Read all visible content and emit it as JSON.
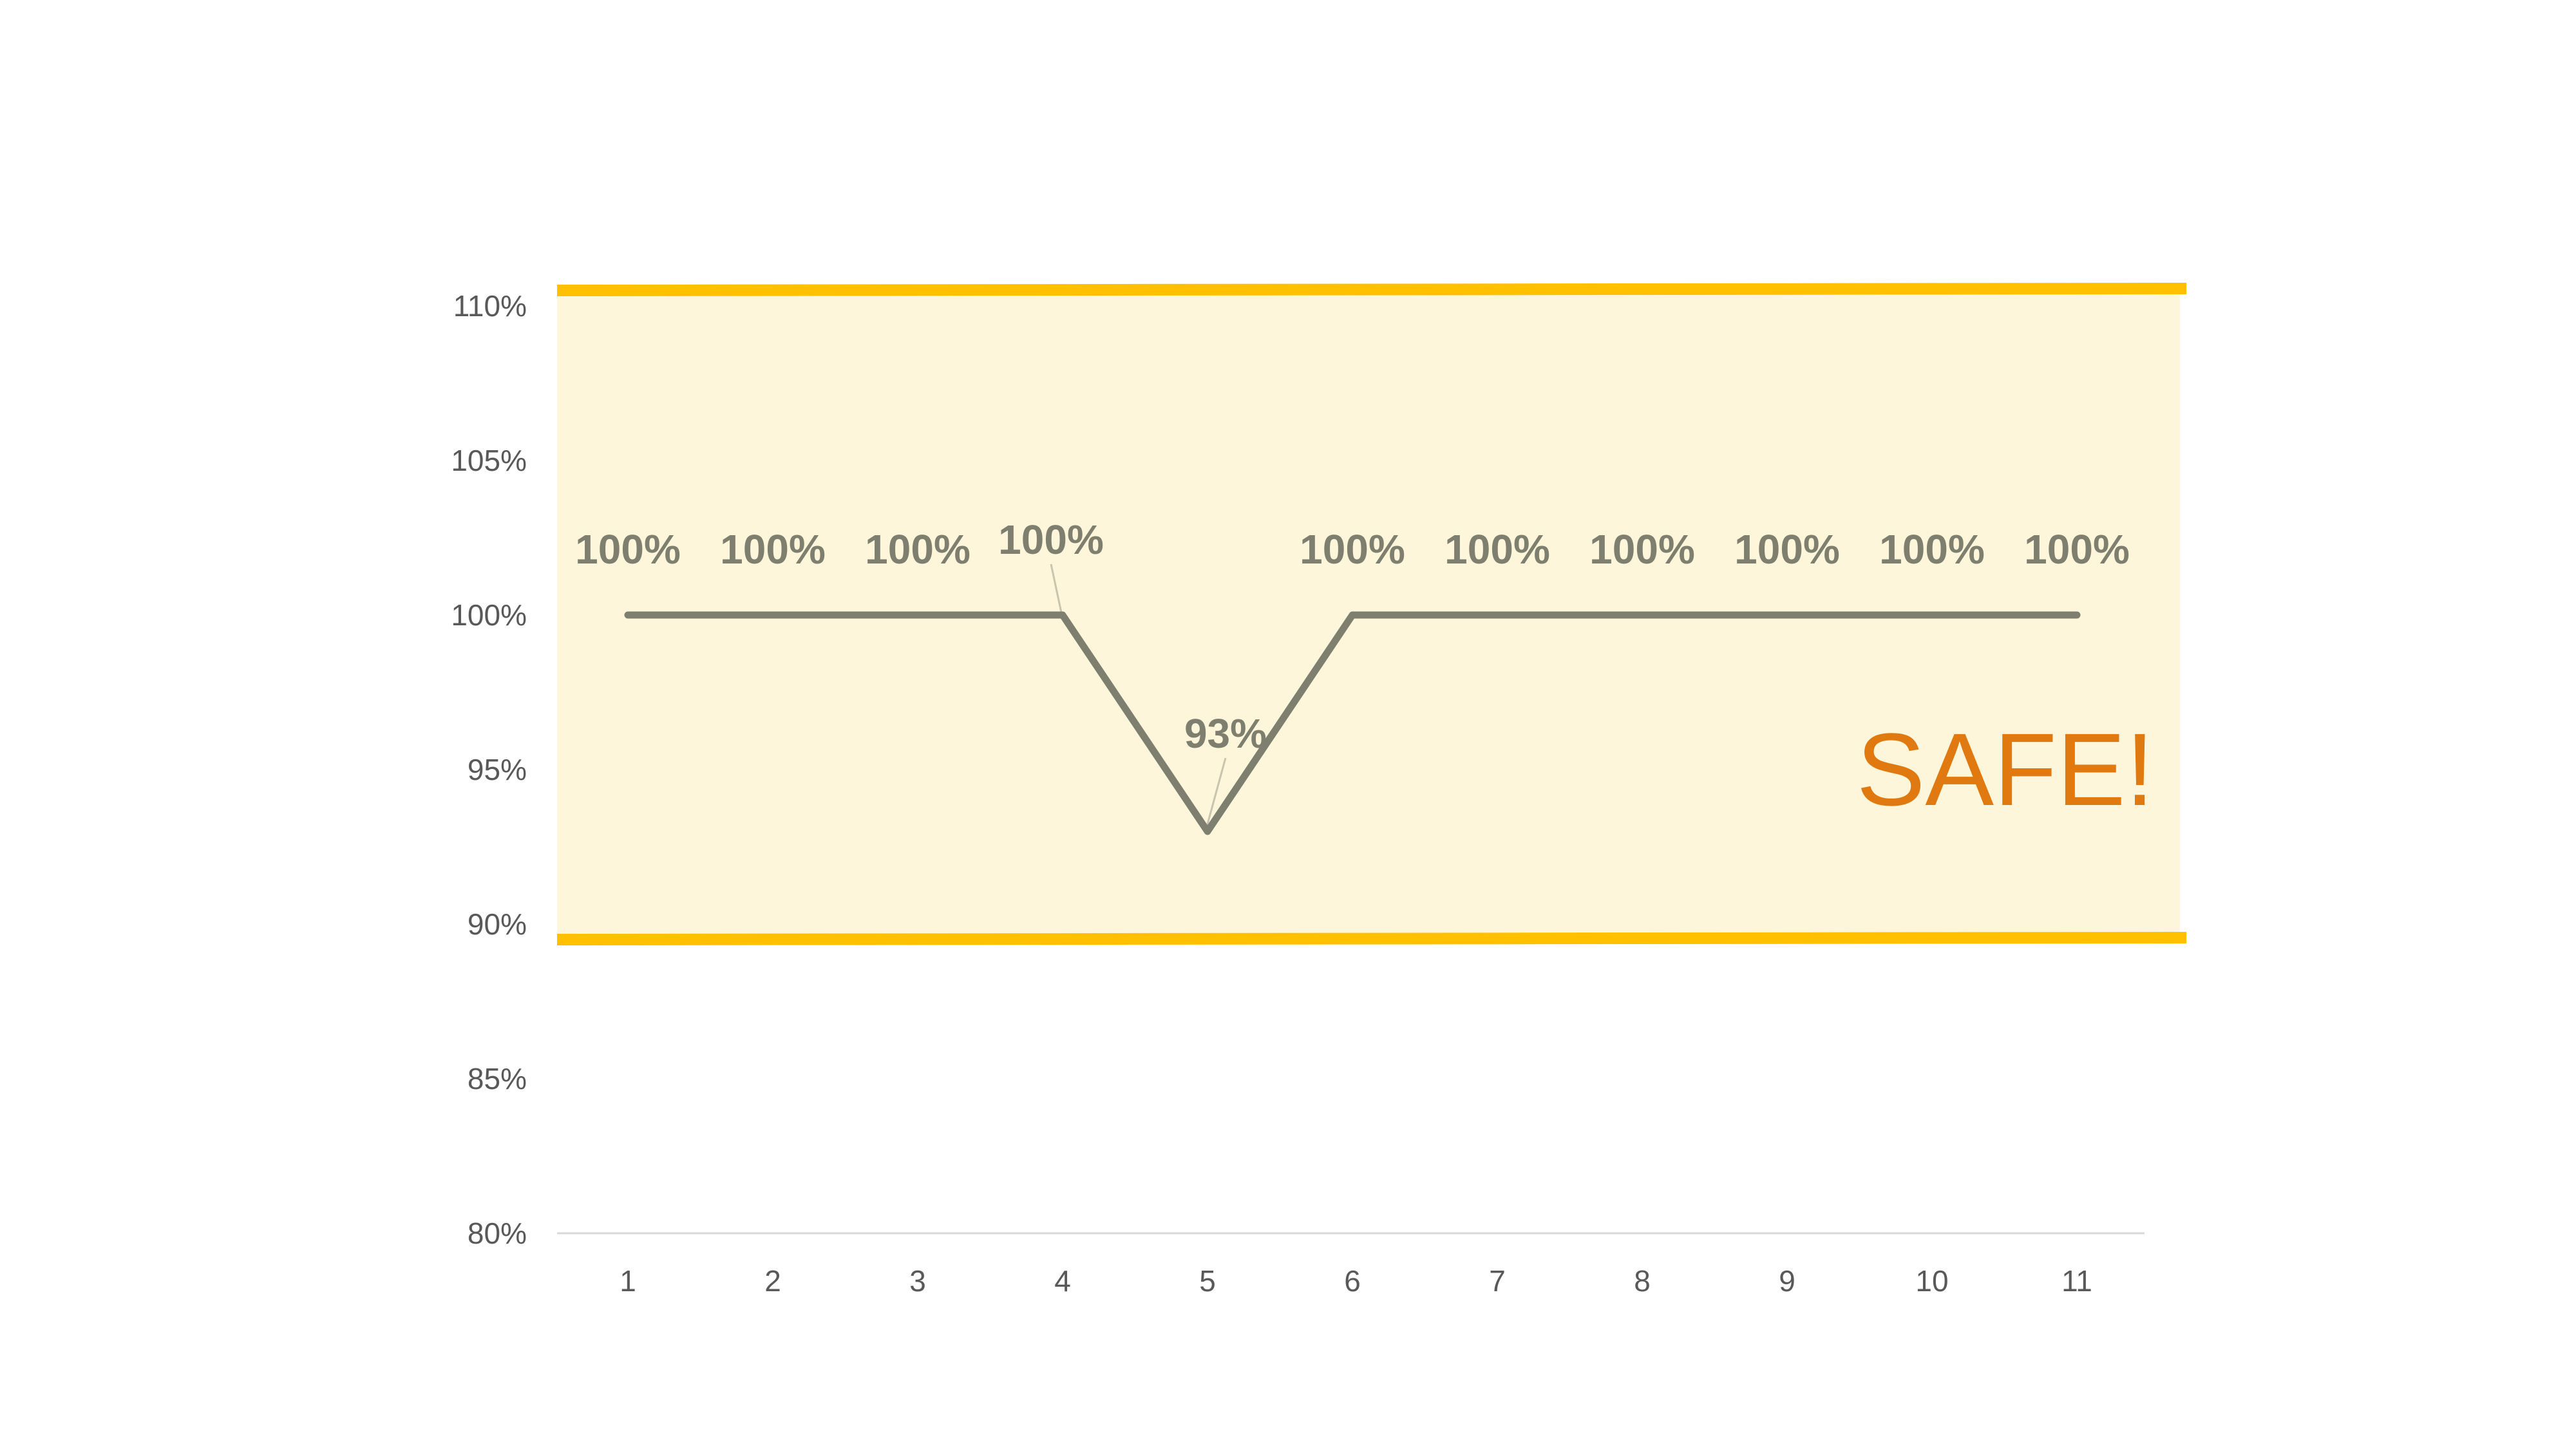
{
  "chart_data": {
    "type": "line",
    "title": "",
    "xlabel": "",
    "ylabel": "",
    "x": [
      1,
      2,
      3,
      4,
      5,
      6,
      7,
      8,
      9,
      10,
      11
    ],
    "x_tick_labels": [
      "1",
      "2",
      "3",
      "4",
      "5",
      "6",
      "7",
      "8",
      "9",
      "10",
      "11"
    ],
    "series": [
      {
        "values": [
          100,
          100,
          100,
          100,
          93,
          100,
          100,
          100,
          100,
          100,
          100
        ],
        "data_labels": [
          "100%",
          "100%",
          "100%",
          "100%",
          "93%",
          "100%",
          "100%",
          "100%",
          "100%",
          "100%",
          "100%"
        ],
        "color": "#7f7f6f"
      }
    ],
    "ylim": [
      80,
      110
    ],
    "y_ticks": [
      80,
      85,
      90,
      95,
      100,
      105,
      110
    ],
    "y_tick_labels": [
      "80%",
      "85%",
      "90%",
      "95%",
      "100%",
      "105%",
      "110%"
    ],
    "grid": false,
    "legend": "none",
    "safe_band": {
      "lower": 89.5,
      "upper": 110.5,
      "fill_color": "#fef6da",
      "border_color": "#ffc000"
    },
    "annotation": {
      "text": "SAFE!",
      "color": "#e07a10"
    },
    "axis_color": "#d9d9d9",
    "label_color": "#7f7f6f"
  }
}
